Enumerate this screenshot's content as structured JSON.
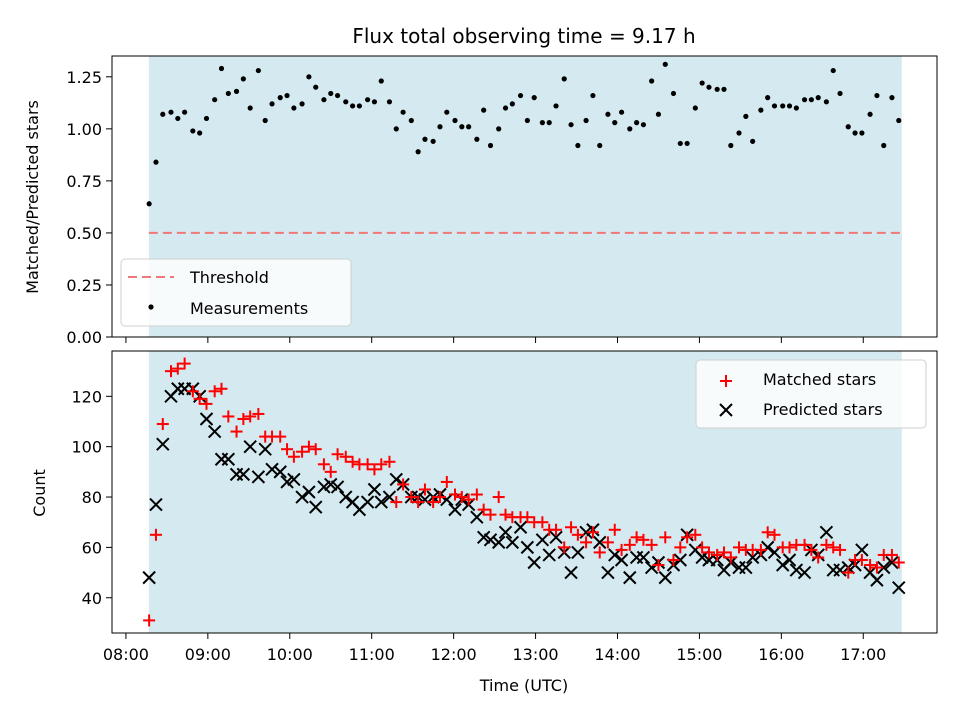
{
  "chart_data": [
    {
      "type": "scatter",
      "title": "Flux total observing time = 9.17 h",
      "xlabel": "",
      "ylabel": "Matched/Predicted stars",
      "ylim": [
        0.0,
        1.35
      ],
      "yticks": [
        0.0,
        0.25,
        0.5,
        0.75,
        1.0,
        1.25
      ],
      "ytick_labels": [
        "0.00",
        "0.25",
        "0.50",
        "0.75",
        "1.00",
        "1.25"
      ],
      "xlim_hours": [
        7.83,
        17.9
      ],
      "observing_window_hours": [
        8.28,
        17.47
      ],
      "threshold": 0.5,
      "legend": {
        "placement": "lower-left",
        "entries": [
          "Threshold",
          "Measurements"
        ]
      },
      "colors": {
        "window": "#d4eaf0",
        "threshold": "#f07878",
        "points": "#000000"
      },
      "series": [
        {
          "name": "Measurements",
          "x": [
            "08:17",
            "08:22",
            "08:27",
            "08:33",
            "08:38",
            "08:43",
            "08:49",
            "08:54",
            "08:59",
            "09:05",
            "09:10",
            "09:15",
            "09:21",
            "09:26",
            "09:31",
            "09:37",
            "09:42",
            "09:47",
            "09:53",
            "09:58",
            "10:03",
            "10:09",
            "10:14",
            "10:19",
            "10:25",
            "10:30",
            "10:35",
            "10:41",
            "10:46",
            "10:51",
            "10:57",
            "11:02",
            "11:07",
            "11:13",
            "11:18",
            "11:23",
            "11:29",
            "11:34",
            "11:39",
            "11:45",
            "11:50",
            "11:55",
            "12:01",
            "12:06",
            "12:11",
            "12:17",
            "12:22",
            "12:27",
            "12:33",
            "12:38",
            "12:43",
            "12:49",
            "12:54",
            "12:59",
            "13:05",
            "13:10",
            "13:15",
            "13:21",
            "13:26",
            "13:31",
            "13:37",
            "13:42",
            "13:47",
            "13:53",
            "13:58",
            "14:03",
            "14:09",
            "14:14",
            "14:19",
            "14:25",
            "14:30",
            "14:35",
            "14:41",
            "14:46",
            "14:51",
            "14:57",
            "15:02",
            "15:07",
            "15:13",
            "15:18",
            "15:23",
            "15:29",
            "15:34",
            "15:39",
            "15:45",
            "15:50",
            "15:55",
            "16:01",
            "16:06",
            "16:11",
            "16:17",
            "16:22",
            "16:27",
            "16:33",
            "16:38",
            "16:43",
            "16:49",
            "16:54",
            "16:59",
            "17:05",
            "17:10",
            "17:15",
            "17:21",
            "17:26"
          ],
          "y": [
            0.64,
            0.84,
            1.07,
            1.08,
            1.05,
            1.08,
            0.99,
            0.98,
            1.05,
            1.14,
            1.29,
            1.17,
            1.18,
            1.24,
            1.1,
            1.28,
            1.04,
            1.12,
            1.15,
            1.16,
            1.1,
            1.12,
            1.25,
            1.2,
            1.14,
            1.17,
            1.16,
            1.13,
            1.11,
            1.11,
            1.14,
            1.13,
            1.23,
            1.13,
            1.0,
            1.08,
            1.04,
            0.89,
            0.95,
            0.94,
            1.01,
            1.08,
            1.04,
            1.01,
            1.01,
            0.95,
            1.09,
            0.92,
            1.0,
            1.1,
            1.12,
            1.16,
            1.04,
            1.15,
            1.03,
            1.03,
            1.11,
            1.24,
            1.02,
            0.92,
            1.04,
            1.16,
            0.92,
            1.07,
            1.03,
            1.08,
            1.0,
            1.03,
            1.02,
            1.23,
            1.07,
            1.31,
            1.17,
            0.93,
            0.93,
            1.1,
            1.22,
            1.2,
            1.19,
            1.19,
            0.92,
            0.98,
            1.06,
            0.94,
            1.09,
            1.15,
            1.11,
            1.11,
            1.11,
            1.1,
            1.14,
            1.14,
            1.15,
            1.13,
            1.28,
            1.17,
            1.01,
            0.98,
            0.98,
            1.07,
            1.16,
            0.92,
            1.15,
            1.04
          ]
        }
      ]
    },
    {
      "type": "scatter",
      "title": "",
      "xlabel": "Time (UTC)",
      "ylabel": "Count",
      "ylim": [
        26,
        138
      ],
      "yticks": [
        40,
        60,
        80,
        100,
        120
      ],
      "ytick_labels": [
        "40",
        "60",
        "80",
        "100",
        "120"
      ],
      "xticks": [
        "08:00",
        "09:00",
        "10:00",
        "11:00",
        "12:00",
        "13:00",
        "14:00",
        "15:00",
        "16:00",
        "17:00"
      ],
      "xlim_hours": [
        7.83,
        17.9
      ],
      "observing_window_hours": [
        8.28,
        17.47
      ],
      "legend": {
        "placement": "top-right",
        "entries": [
          "Matched stars",
          "Predicted stars"
        ]
      },
      "colors": {
        "window": "#d4eaf0",
        "matched": "#ff0000",
        "predicted": "#000000"
      },
      "series": [
        {
          "name": "Matched stars",
          "x": [
            "08:17",
            "08:22",
            "08:27",
            "08:33",
            "08:38",
            "08:43",
            "08:49",
            "08:54",
            "08:59",
            "09:05",
            "09:10",
            "09:15",
            "09:21",
            "09:26",
            "09:31",
            "09:37",
            "09:42",
            "09:47",
            "09:53",
            "09:58",
            "10:03",
            "10:09",
            "10:14",
            "10:19",
            "10:25",
            "10:30",
            "10:35",
            "10:41",
            "10:46",
            "10:51",
            "10:57",
            "11:02",
            "11:07",
            "11:13",
            "11:18",
            "11:23",
            "11:29",
            "11:34",
            "11:39",
            "11:45",
            "11:50",
            "11:55",
            "12:01",
            "12:06",
            "12:11",
            "12:17",
            "12:22",
            "12:27",
            "12:33",
            "12:38",
            "12:43",
            "12:49",
            "12:54",
            "12:59",
            "13:05",
            "13:10",
            "13:15",
            "13:21",
            "13:26",
            "13:31",
            "13:37",
            "13:42",
            "13:47",
            "13:53",
            "13:58",
            "14:03",
            "14:09",
            "14:14",
            "14:19",
            "14:25",
            "14:30",
            "14:35",
            "14:41",
            "14:46",
            "14:51",
            "14:57",
            "15:02",
            "15:07",
            "15:13",
            "15:18",
            "15:23",
            "15:29",
            "15:34",
            "15:39",
            "15:45",
            "15:50",
            "15:55",
            "16:01",
            "16:06",
            "16:11",
            "16:17",
            "16:22",
            "16:27",
            "16:33",
            "16:38",
            "16:43",
            "16:49",
            "16:54",
            "16:59",
            "17:05",
            "17:10",
            "17:15",
            "17:21",
            "17:26"
          ],
          "y": [
            31,
            65,
            109,
            130,
            131,
            133,
            122,
            119,
            117,
            122,
            123,
            112,
            106,
            111,
            112,
            113,
            104,
            104,
            104,
            99,
            96,
            98,
            100,
            99,
            93,
            90,
            97,
            96,
            94,
            93,
            93,
            91,
            93,
            94,
            78,
            85,
            80,
            78,
            83,
            78,
            80,
            86,
            81,
            80,
            79,
            81,
            75,
            73,
            80,
            73,
            72,
            72,
            72,
            70,
            70,
            67,
            67,
            60,
            68,
            65,
            62,
            66,
            58,
            62,
            67,
            59,
            61,
            64,
            63,
            61,
            53,
            64,
            55,
            60,
            64,
            65,
            60,
            58,
            57,
            58,
            56,
            60,
            59,
            59,
            59,
            66,
            65,
            60,
            60,
            61,
            61,
            59,
            56,
            61,
            60,
            59,
            50,
            55,
            55,
            53,
            52,
            57,
            57,
            54
          ]
        },
        {
          "name": "Predicted stars",
          "x": [
            "08:17",
            "08:22",
            "08:27",
            "08:33",
            "08:38",
            "08:43",
            "08:49",
            "08:54",
            "08:59",
            "09:05",
            "09:10",
            "09:15",
            "09:21",
            "09:26",
            "09:31",
            "09:37",
            "09:42",
            "09:47",
            "09:53",
            "09:58",
            "10:03",
            "10:09",
            "10:14",
            "10:19",
            "10:25",
            "10:30",
            "10:35",
            "10:41",
            "10:46",
            "10:51",
            "10:57",
            "11:02",
            "11:07",
            "11:13",
            "11:18",
            "11:23",
            "11:29",
            "11:34",
            "11:39",
            "11:45",
            "11:50",
            "11:55",
            "12:01",
            "12:06",
            "12:11",
            "12:17",
            "12:22",
            "12:27",
            "12:33",
            "12:38",
            "12:43",
            "12:49",
            "12:54",
            "12:59",
            "13:05",
            "13:10",
            "13:15",
            "13:21",
            "13:26",
            "13:31",
            "13:37",
            "13:42",
            "13:47",
            "13:53",
            "13:58",
            "14:03",
            "14:09",
            "14:14",
            "14:19",
            "14:25",
            "14:30",
            "14:35",
            "14:41",
            "14:46",
            "14:51",
            "14:57",
            "15:02",
            "15:07",
            "15:13",
            "15:18",
            "15:23",
            "15:29",
            "15:34",
            "15:39",
            "15:45",
            "15:50",
            "15:55",
            "16:01",
            "16:06",
            "16:11",
            "16:17",
            "16:22",
            "16:27",
            "16:33",
            "16:38",
            "16:43",
            "16:49",
            "16:54",
            "16:59",
            "17:05",
            "17:10",
            "17:15",
            "17:21",
            "17:26"
          ],
          "y": [
            48,
            77,
            101,
            120,
            123,
            123,
            123,
            120,
            111,
            106,
            95,
            95,
            89,
            89,
            100,
            88,
            99,
            91,
            90,
            86,
            87,
            80,
            82,
            76,
            84,
            85,
            84,
            80,
            78,
            75,
            78,
            83,
            78,
            80,
            87,
            85,
            80,
            80,
            79,
            80,
            81,
            79,
            75,
            79,
            77,
            72,
            64,
            63,
            62,
            66,
            62,
            68,
            60,
            54,
            63,
            57,
            64,
            58,
            50,
            58,
            66,
            67,
            62,
            50,
            57,
            55,
            48,
            56,
            56,
            52,
            54,
            48,
            53,
            55,
            65,
            59,
            56,
            55,
            55,
            51,
            54,
            52,
            52,
            56,
            57,
            60,
            58,
            53,
            55,
            51,
            50,
            59,
            57,
            66,
            51,
            51,
            52,
            53,
            59,
            50,
            47,
            52,
            54,
            44
          ]
        }
      ]
    }
  ]
}
